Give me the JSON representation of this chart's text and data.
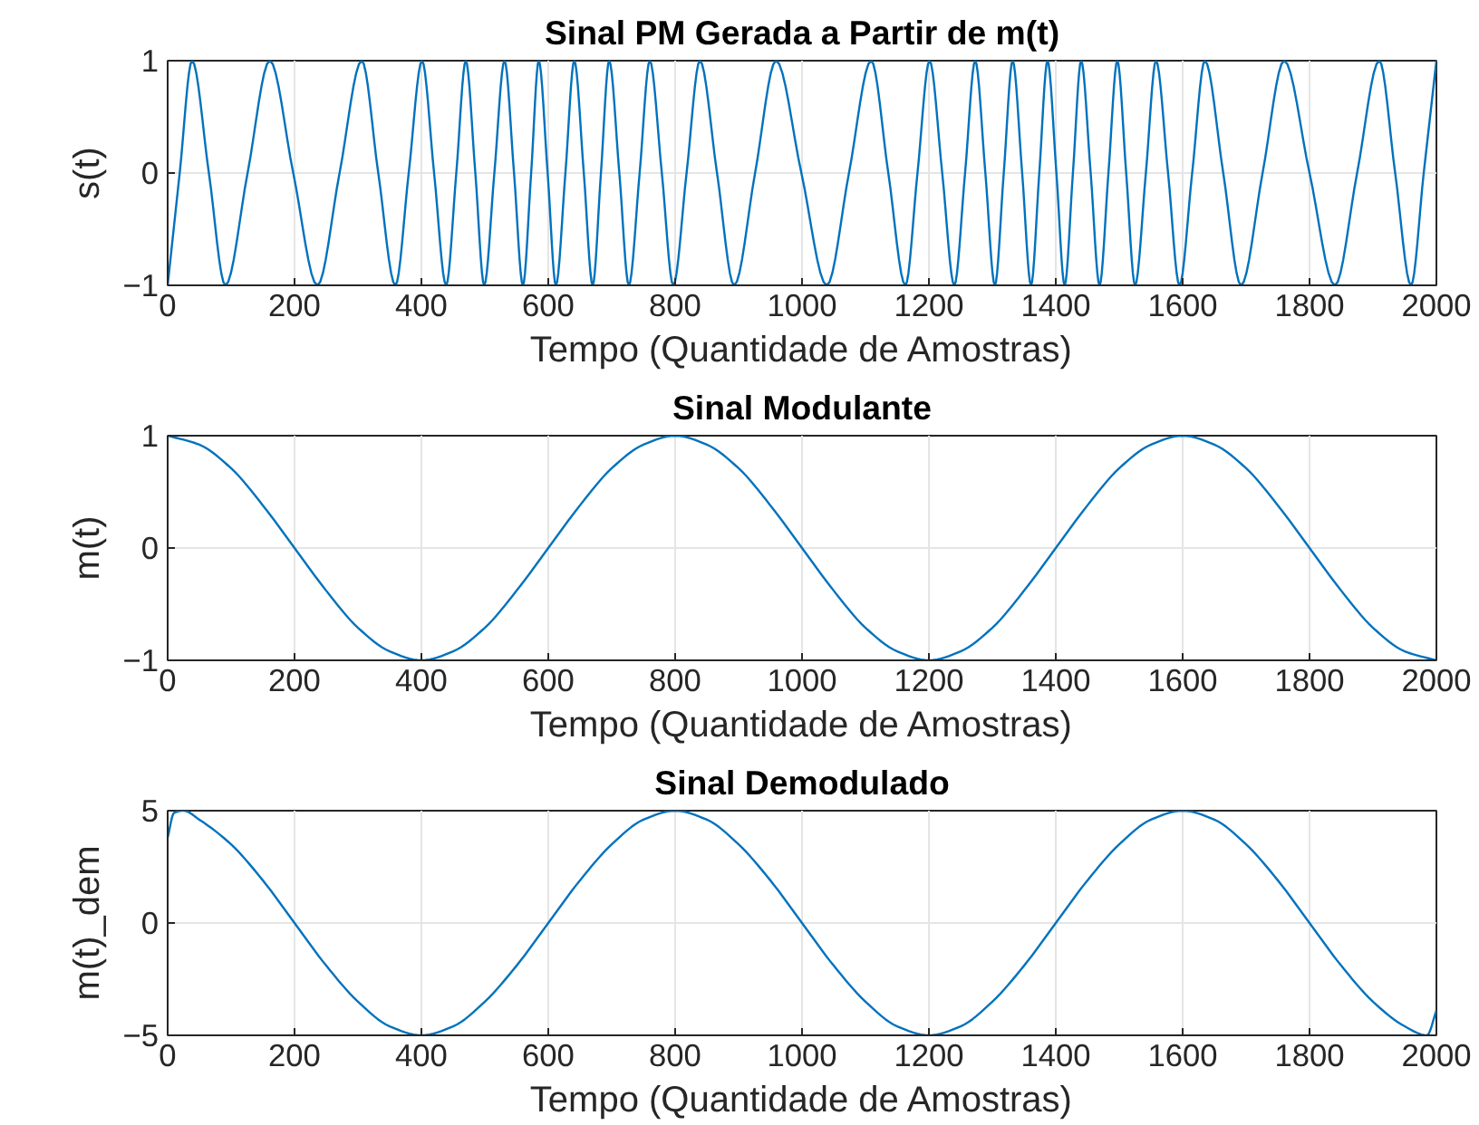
{
  "chart_data": [
    {
      "type": "line",
      "title": "Sinal PM Gerada a Partir de m(t)",
      "xlabel": "Tempo (Quantidade de Amostras)",
      "ylabel": "s(t)",
      "x": [
        0,
        19,
        38.5,
        65,
        91,
        126,
        161,
        198,
        236,
        271,
        306,
        332,
        359,
        380,
        401,
        420,
        439,
        455,
        470,
        485,
        499,
        515,
        531,
        546,
        560,
        573,
        585,
        599,
        612,
        627,
        641,
        656,
        670,
        683,
        696,
        712,
        727,
        744,
        760,
        779,
        797,
        818,
        839,
        866,
        893,
        926,
        959,
        999,
        1039,
        1074,
        1109,
        1136,
        1163,
        1182,
        1201,
        1221,
        1240,
        1257,
        1273,
        1289,
        1304,
        1318,
        1332,
        1347,
        1361,
        1374,
        1387,
        1401,
        1414,
        1427,
        1440,
        1455,
        1469,
        1483,
        1497,
        1511,
        1525,
        1542,
        1558,
        1577,
        1595,
        1615,
        1635,
        1664,
        1692,
        1726,
        1760,
        1800,
        1840,
        1875,
        1910,
        1935,
        1960,
        1980,
        2000
      ],
      "series": [
        {
          "color": "#0072bd",
          "values": [
            -1,
            0,
            1,
            0,
            -1,
            0,
            1,
            0,
            -1,
            0,
            1,
            0,
            -1,
            0,
            1,
            0,
            -1,
            0,
            1,
            0,
            -1,
            0,
            1,
            0,
            -1,
            0,
            1,
            0,
            -1,
            0,
            1,
            0,
            -1,
            0,
            1,
            0,
            -1,
            0,
            1,
            0,
            -1,
            0,
            1,
            0,
            -1,
            0,
            1,
            0,
            -1,
            0,
            1,
            0,
            -1,
            0,
            1,
            0,
            -1,
            0,
            1,
            0,
            -1,
            0,
            1,
            0,
            -1,
            0,
            1,
            0,
            -1,
            0,
            1,
            0,
            -1,
            0,
            1,
            0,
            -1,
            0,
            1,
            0,
            -1,
            0,
            1,
            0,
            -1,
            0,
            1,
            0,
            -1,
            0,
            1,
            0,
            -1,
            0,
            1
          ]
        }
      ],
      "xlim": [
        0,
        2000
      ],
      "xticks": [
        0,
        200,
        400,
        600,
        800,
        1000,
        1200,
        1400,
        1600,
        1800,
        2000
      ],
      "ylim": [
        -1,
        1
      ],
      "yticks": [
        -1,
        0,
        1
      ],
      "grid": true
    },
    {
      "type": "line",
      "title": "Sinal Modulante",
      "xlabel": "Tempo (Quantidade de Amostras)",
      "ylabel": "m(t)",
      "x": [
        0,
        50,
        100,
        150,
        200,
        250,
        300,
        350,
        400,
        450,
        500,
        550,
        600,
        650,
        700,
        750,
        800,
        850,
        900,
        950,
        1000,
        1050,
        1100,
        1150,
        1200,
        1250,
        1300,
        1350,
        1400,
        1450,
        1500,
        1550,
        1600,
        1650,
        1700,
        1750,
        1800,
        1850,
        1900,
        1950,
        2000
      ],
      "series": [
        {
          "color": "#0072bd",
          "values": [
            1,
            0.92,
            0.71,
            0.38,
            0,
            -0.38,
            -0.71,
            -0.92,
            -1,
            -0.92,
            -0.71,
            -0.38,
            0,
            0.38,
            0.71,
            0.92,
            1,
            0.92,
            0.71,
            0.38,
            0,
            -0.38,
            -0.71,
            -0.92,
            -1,
            -0.92,
            -0.71,
            -0.38,
            0,
            0.38,
            0.71,
            0.92,
            1,
            0.92,
            0.71,
            0.38,
            0,
            -0.38,
            -0.71,
            -0.92,
            -1
          ]
        }
      ],
      "xlim": [
        0,
        2000
      ],
      "xticks": [
        0,
        200,
        400,
        600,
        800,
        1000,
        1200,
        1400,
        1600,
        1800,
        2000
      ],
      "ylim": [
        -1,
        1
      ],
      "yticks": [
        -1,
        0,
        1
      ],
      "grid": true
    },
    {
      "type": "line",
      "title": "Sinal Demodulado",
      "xlabel": "Tempo (Quantidade de Amostras)",
      "ylabel": "m(t)_dem",
      "x": [
        0,
        10,
        25,
        50,
        100,
        150,
        200,
        250,
        300,
        350,
        400,
        450,
        500,
        550,
        600,
        650,
        700,
        750,
        800,
        850,
        900,
        950,
        1000,
        1050,
        1100,
        1150,
        1200,
        1250,
        1300,
        1350,
        1400,
        1450,
        1500,
        1550,
        1600,
        1650,
        1700,
        1750,
        1800,
        1850,
        1900,
        1950,
        1985,
        2000
      ],
      "series": [
        {
          "color": "#0072bd",
          "values": [
            3.8,
            4.9,
            5,
            4.6,
            3.5,
            1.9,
            0,
            -1.9,
            -3.5,
            -4.6,
            -5,
            -4.6,
            -3.5,
            -1.9,
            0,
            1.9,
            3.5,
            4.6,
            5,
            4.6,
            3.5,
            1.9,
            0,
            -1.9,
            -3.5,
            -4.6,
            -5,
            -4.6,
            -3.5,
            -1.9,
            0,
            1.9,
            3.5,
            4.6,
            5,
            4.6,
            3.5,
            1.9,
            0,
            -1.9,
            -3.5,
            -4.6,
            -5,
            -3.9
          ]
        }
      ],
      "xlim": [
        0,
        2000
      ],
      "xticks": [
        0,
        200,
        400,
        600,
        800,
        1000,
        1200,
        1400,
        1600,
        1800,
        2000
      ],
      "ylim": [
        -5,
        5
      ],
      "yticks": [
        -5,
        0,
        5
      ],
      "grid": true
    }
  ]
}
